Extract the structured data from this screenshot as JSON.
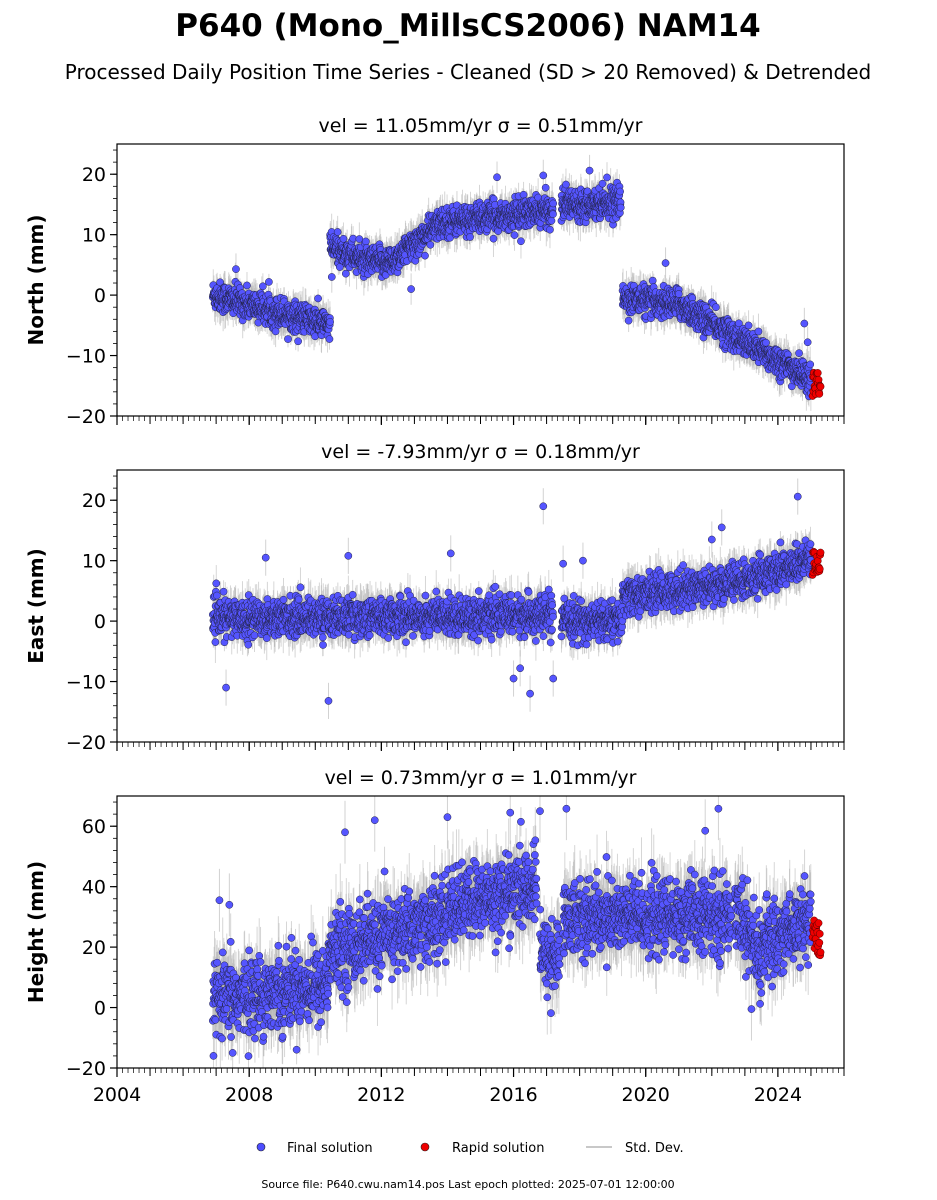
{
  "title": "P640 (Mono_MillsCS2006) NAM14",
  "subtitle": "Processed Daily Position Time Series - Cleaned (SD > 20 Removed) & Detrended",
  "footer": "Source file: P640.cwu.nam14.pos  Last epoch plotted: 2025-07-01 12:00:00",
  "legend": {
    "placement": "bottom-center",
    "items": [
      {
        "label": "Final solution",
        "color": "#4d4dff"
      },
      {
        "label": "Rapid solution",
        "color": "#ee0000"
      },
      {
        "label": "Std. Dev.",
        "color": "#c8c8c8"
      }
    ]
  },
  "colors": {
    "final": "#5555ff",
    "rapid": "#ee0000",
    "stddev": "#b4b4b4",
    "edge": "#222244"
  },
  "chart_data": [
    {
      "type": "scatter",
      "panel": "north",
      "title": "vel = 11.05mm/yr   σ = 0.51mm/yr",
      "vel_text": "vel = 11.05mm/yr",
      "sigma_text": "σ = 0.51mm/yr",
      "ylabel": "North (mm)",
      "ylim": [
        -20,
        25
      ],
      "yticks": [
        -20,
        -10,
        0,
        10,
        20
      ],
      "xlim": [
        2004.0,
        2026.0
      ],
      "xticks": [
        2004,
        2008,
        2012,
        2016,
        2020,
        2024
      ],
      "show_xtick_labels": false,
      "noise": 1.2,
      "outliers": [
        [
          2007.6,
          4.3
        ],
        [
          2008.8,
          -6.0
        ],
        [
          2015.5,
          19.5
        ],
        [
          2016.9,
          19.8
        ],
        [
          2018.3,
          20.6
        ],
        [
          2020.6,
          5.3
        ],
        [
          2024.8,
          -4.7
        ],
        [
          2010.5,
          3.0
        ],
        [
          2012.9,
          1.0
        ],
        [
          2024.9,
          -7.8
        ]
      ],
      "segments": [
        {
          "t0": 2006.9,
          "t1": 2010.45,
          "y0": 0.0,
          "y1": -5.0
        },
        {
          "t0": 2010.45,
          "t1": 2011.6,
          "y0": 8.0,
          "y1": 5.5
        },
        {
          "t0": 2011.6,
          "t1": 2012.3,
          "y0": 5.5,
          "y1": 5.5
        },
        {
          "t0": 2012.3,
          "t1": 2013.8,
          "y0": 5.5,
          "y1": 12.0
        },
        {
          "t0": 2013.8,
          "t1": 2017.2,
          "y0": 12.0,
          "y1": 14.0
        },
        {
          "t0": 2017.45,
          "t1": 2019.25,
          "y0": 15.0,
          "y1": 15.5
        },
        {
          "t0": 2019.3,
          "t1": 2021.0,
          "y0": -0.5,
          "y1": -1.5
        },
        {
          "t0": 2021.0,
          "t1": 2025.0,
          "y0": -1.5,
          "y1": -14.0
        }
      ],
      "rapid": {
        "t0": 2025.05,
        "t1": 2025.3,
        "y_min": -17.0,
        "y_max": -12.8
      },
      "errbar": 2.0
    },
    {
      "type": "scatter",
      "panel": "east",
      "title": "vel = -7.93mm/yr   σ = 0.18mm/yr",
      "vel_text": "vel = -7.93mm/yr",
      "sigma_text": "σ = 0.18mm/yr",
      "ylabel": "East (mm)",
      "ylim": [
        -20,
        25
      ],
      "yticks": [
        -20,
        -10,
        0,
        10,
        20
      ],
      "xlim": [
        2004.0,
        2026.0
      ],
      "xticks": [
        2004,
        2008,
        2012,
        2016,
        2020,
        2024
      ],
      "show_xtick_labels": false,
      "noise": 1.5,
      "outliers": [
        [
          2007.3,
          -11.0
        ],
        [
          2010.4,
          -13.2
        ],
        [
          2011.0,
          10.8
        ],
        [
          2014.1,
          11.2
        ],
        [
          2016.0,
          -9.5
        ],
        [
          2016.2,
          -7.8
        ],
        [
          2016.5,
          -12.0
        ],
        [
          2016.9,
          19.0
        ],
        [
          2017.2,
          -9.5
        ],
        [
          2017.5,
          9.5
        ],
        [
          2018.1,
          10.0
        ],
        [
          2008.5,
          10.5
        ],
        [
          2024.6,
          20.6
        ],
        [
          2022.0,
          13.5
        ],
        [
          2022.3,
          15.5
        ]
      ],
      "segments": [
        {
          "t0": 2006.9,
          "t1": 2017.2,
          "y0": 0.5,
          "y1": 1.0
        },
        {
          "t0": 2017.45,
          "t1": 2019.3,
          "y0": 0.0,
          "y1": 0.0
        },
        {
          "t0": 2019.3,
          "t1": 2022.9,
          "y0": 4.0,
          "y1": 6.5
        },
        {
          "t0": 2022.9,
          "t1": 2025.0,
          "y0": 6.5,
          "y1": 10.0
        }
      ],
      "rapid": {
        "t0": 2025.05,
        "t1": 2025.3,
        "y_min": 7.5,
        "y_max": 11.5
      },
      "errbar": 2.3
    },
    {
      "type": "scatter",
      "panel": "height",
      "title": "vel = 0.73mm/yr   σ = 1.01mm/yr",
      "vel_text": "vel = 0.73mm/yr",
      "sigma_text": "σ = 1.01mm/yr",
      "ylabel": "Height (mm)",
      "ylim": [
        -20,
        70
      ],
      "yticks": [
        -20,
        0,
        20,
        40,
        60
      ],
      "xlim": [
        2004.0,
        2026.0
      ],
      "xticks": [
        2004,
        2008,
        2012,
        2016,
        2020,
        2024
      ],
      "show_xtick_labels": true,
      "noise": 6.0,
      "outliers": [
        [
          2007.1,
          35.5
        ],
        [
          2007.4,
          34.0
        ],
        [
          2010.9,
          58.0
        ],
        [
          2014.0,
          63.0
        ],
        [
          2015.9,
          64.5
        ],
        [
          2016.8,
          65.0
        ],
        [
          2017.6,
          65.8
        ],
        [
          2021.8,
          58.5
        ],
        [
          2022.2,
          65.8
        ],
        [
          2023.2,
          -0.5
        ],
        [
          2007.5,
          -15.0
        ],
        [
          2011.8,
          62.0
        ]
      ],
      "segments": [
        {
          "t0": 2006.9,
          "t1": 2010.4,
          "y0": 2.0,
          "y1": 8.0
        },
        {
          "t0": 2010.4,
          "t1": 2014.0,
          "y0": 18.0,
          "y1": 30.0
        },
        {
          "t0": 2014.0,
          "t1": 2016.7,
          "y0": 33.0,
          "y1": 40.0
        },
        {
          "t0": 2016.8,
          "t1": 2017.4,
          "y0": 18.0,
          "y1": 16.0
        },
        {
          "t0": 2017.5,
          "t1": 2022.6,
          "y0": 30.0,
          "y1": 30.0
        },
        {
          "t0": 2022.7,
          "t1": 2023.5,
          "y0": 35.0,
          "y1": 15.0
        },
        {
          "t0": 2023.5,
          "t1": 2025.0,
          "y0": 20.0,
          "y1": 30.0
        }
      ],
      "rapid": {
        "t0": 2025.05,
        "t1": 2025.3,
        "y_min": 16.0,
        "y_max": 29.0
      },
      "errbar": 8.0
    }
  ]
}
